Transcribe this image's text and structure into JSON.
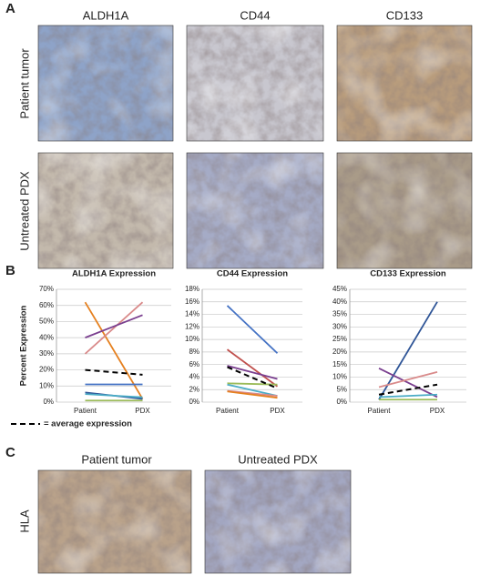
{
  "panel_labels": [
    "A",
    "B",
    "C"
  ],
  "panel_a": {
    "columns": [
      "ALDH1A",
      "CD44",
      "CD133"
    ],
    "rows": [
      "Patient tumor",
      "Untreated PDX"
    ]
  },
  "panel_c": {
    "columns": [
      "Patient tumor",
      "Untreated PDX"
    ],
    "row": "HLA"
  },
  "chart_data": [
    {
      "type": "line",
      "title": "ALDH1A Expression",
      "ylabel": "Percent Expression",
      "categories": [
        "Patient",
        "PDX"
      ],
      "ylim": [
        0,
        70
      ],
      "grid": true,
      "yticks": [
        {
          "value": 0,
          "label": "0%"
        },
        {
          "value": 10,
          "label": "10%"
        },
        {
          "value": 20,
          "label": "20%"
        },
        {
          "value": 30,
          "label": "30%"
        },
        {
          "value": 40,
          "label": "40%"
        },
        {
          "value": 50,
          "label": "50%"
        },
        {
          "value": 60,
          "label": "60%"
        },
        {
          "value": 70,
          "label": "70%"
        }
      ],
      "series": [
        {
          "color": "#e5801f",
          "values": [
            62,
            2
          ]
        },
        {
          "color": "#d98a8a",
          "values": [
            30,
            62
          ]
        },
        {
          "color": "#7a3f8f",
          "values": [
            40,
            54
          ]
        },
        {
          "color": "#4472c4",
          "values": [
            11,
            11
          ]
        },
        {
          "color": "#2f5597",
          "values": [
            6,
            2
          ]
        },
        {
          "color": "#4bacc6",
          "values": [
            5,
            3
          ]
        },
        {
          "color": "#9bbb59",
          "values": [
            1,
            1
          ]
        },
        {
          "name": "= average expression",
          "color": "#000000",
          "dashed": true,
          "values": [
            20,
            17
          ]
        }
      ]
    },
    {
      "type": "line",
      "title": "CD44 Expression",
      "categories": [
        "Patient",
        "PDX"
      ],
      "ylim": [
        0,
        18
      ],
      "grid": true,
      "yticks": [
        {
          "value": 0,
          "label": "0%"
        },
        {
          "value": 2,
          "label": "2%"
        },
        {
          "value": 4,
          "label": "4%"
        },
        {
          "value": 6,
          "label": "6%"
        },
        {
          "value": 8,
          "label": "8%"
        },
        {
          "value": 10,
          "label": "10%"
        },
        {
          "value": 12,
          "label": "12%"
        },
        {
          "value": 14,
          "label": "14%"
        },
        {
          "value": 16,
          "label": "16%"
        },
        {
          "value": 18,
          "label": "18%"
        }
      ],
      "series": [
        {
          "color": "#4472c4",
          "values": [
            15.4,
            7.8
          ]
        },
        {
          "color": "#c0504d",
          "values": [
            8.4,
            2.5
          ]
        },
        {
          "color": "#7a3f8f",
          "values": [
            5.8,
            3.7
          ]
        },
        {
          "color": "#9bbb59",
          "values": [
            3,
            2.8
          ]
        },
        {
          "color": "#4bacc6",
          "values": [
            2.8,
            1
          ]
        },
        {
          "color": "#d98a8a",
          "values": [
            1.8,
            1
          ]
        },
        {
          "color": "#e5801f",
          "values": [
            1.7,
            0.7
          ]
        },
        {
          "color": "#000000",
          "dashed": true,
          "values": [
            5.6,
            2.2
          ]
        }
      ]
    },
    {
      "type": "line",
      "title": "CD133 Expression",
      "categories": [
        "Patient",
        "PDX"
      ],
      "ylim": [
        0,
        45
      ],
      "grid": true,
      "yticks": [
        {
          "value": 0,
          "label": "0%"
        },
        {
          "value": 5,
          "label": "5%"
        },
        {
          "value": 10,
          "label": "10%"
        },
        {
          "value": 15,
          "label": "15%"
        },
        {
          "value": 20,
          "label": "20%"
        },
        {
          "value": 25,
          "label": "25%"
        },
        {
          "value": 30,
          "label": "30%"
        },
        {
          "value": 35,
          "label": "35%"
        },
        {
          "value": 40,
          "label": "40%"
        },
        {
          "value": 45,
          "label": "45%"
        }
      ],
      "series": [
        {
          "color": "#2f5597",
          "values": [
            1,
            40
          ]
        },
        {
          "color": "#7a3f8f",
          "values": [
            13.5,
            2
          ]
        },
        {
          "color": "#d98a8a",
          "values": [
            6,
            12
          ]
        },
        {
          "color": "#4bacc6",
          "values": [
            2,
            3
          ]
        },
        {
          "color": "#9bbb59",
          "values": [
            1,
            1
          ]
        },
        {
          "color": "#000000",
          "dashed": true,
          "values": [
            3,
            7
          ]
        }
      ]
    }
  ]
}
